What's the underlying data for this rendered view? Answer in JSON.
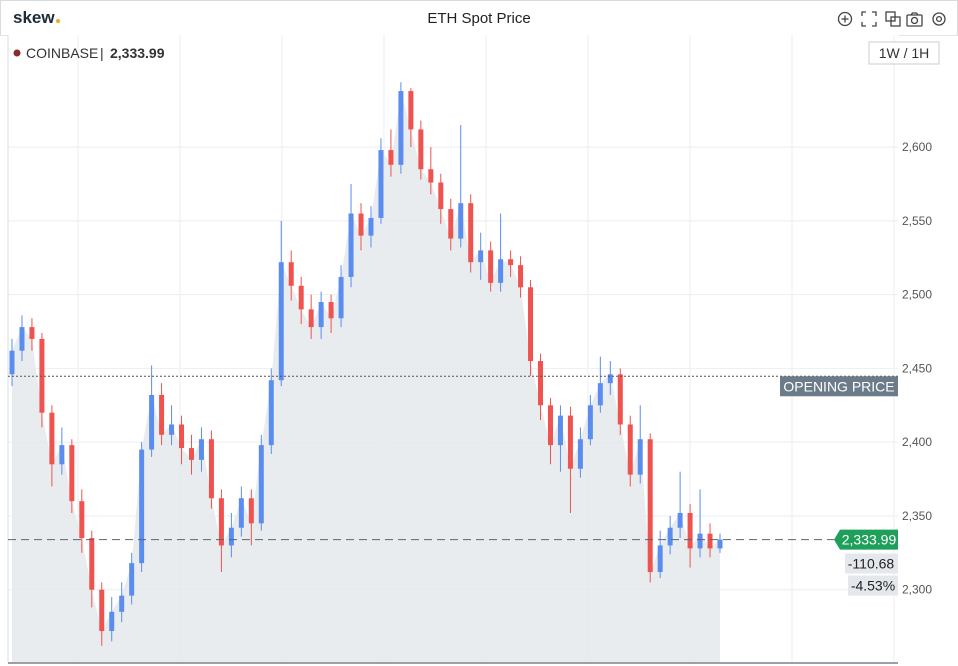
{
  "header": {
    "logo": "skew",
    "title": "ETH Spot Price"
  },
  "chart_data": {
    "type": "candlestick",
    "exchange": "COINBASE",
    "last_price": {
      "value": 2333.99,
      "label": "2,333.99"
    },
    "change": "-110.68",
    "change_pct": "-4.53%",
    "opening_price": 2444.67,
    "opening_price_label": "OPENING PRICE",
    "interval": "1W / 1H",
    "up_color": "#5b8def",
    "down_color": "#ef5350",
    "area_color": "#e4e7eb",
    "ylim": [
      2251,
      2676
    ],
    "yticks": [
      {
        "value": 2300,
        "label": "2,300"
      },
      {
        "value": 2350,
        "label": "2,350"
      },
      {
        "value": 2400,
        "label": "2,400"
      },
      {
        "value": 2450,
        "label": "2,450"
      },
      {
        "value": 2500,
        "label": "2,500"
      },
      {
        "value": 2550,
        "label": "2,550"
      },
      {
        "value": 2600,
        "label": "2,600"
      }
    ],
    "grid": true,
    "open": [
      2446,
      2462,
      2478,
      2470,
      2420,
      2385,
      2398,
      2360,
      2335,
      2300,
      2272,
      2285,
      2296,
      2318,
      2395,
      2432,
      2405,
      2412,
      2396,
      2388,
      2402,
      2362,
      2330,
      2342,
      2362,
      2345,
      2398,
      2442,
      2522,
      2506,
      2490,
      2478,
      2495,
      2484,
      2512,
      2555,
      2540,
      2552,
      2598,
      2588,
      2638,
      2612,
      2585,
      2576,
      2558,
      2538,
      2562,
      2522,
      2530,
      2508,
      2524,
      2520,
      2505,
      2455,
      2425,
      2398,
      2418,
      2382,
      2402,
      2425,
      2440,
      2446,
      2412,
      2378,
      2402,
      2312,
      2330,
      2342,
      2352,
      2328,
      2338,
      2328
    ],
    "high": [
      2470,
      2486,
      2484,
      2474,
      2425,
      2410,
      2402,
      2368,
      2340,
      2305,
      2295,
      2305,
      2325,
      2400,
      2452,
      2440,
      2425,
      2418,
      2405,
      2410,
      2408,
      2368,
      2352,
      2370,
      2368,
      2405,
      2450,
      2550,
      2530,
      2512,
      2500,
      2502,
      2500,
      2520,
      2575,
      2562,
      2560,
      2606,
      2612,
      2644,
      2640,
      2618,
      2600,
      2582,
      2565,
      2615,
      2568,
      2542,
      2536,
      2555,
      2530,
      2526,
      2510,
      2460,
      2430,
      2425,
      2424,
      2410,
      2432,
      2458,
      2455,
      2450,
      2418,
      2425,
      2406,
      2340,
      2350,
      2380,
      2358,
      2368,
      2345,
      2338
    ],
    "low": [
      2438,
      2455,
      2462,
      2410,
      2370,
      2378,
      2352,
      2325,
      2288,
      2262,
      2265,
      2278,
      2290,
      2312,
      2390,
      2398,
      2398,
      2385,
      2378,
      2380,
      2355,
      2312,
      2322,
      2336,
      2330,
      2340,
      2392,
      2438,
      2496,
      2480,
      2470,
      2470,
      2474,
      2478,
      2505,
      2530,
      2532,
      2548,
      2580,
      2582,
      2600,
      2578,
      2568,
      2548,
      2530,
      2532,
      2515,
      2510,
      2502,
      2502,
      2512,
      2498,
      2445,
      2415,
      2385,
      2380,
      2352,
      2376,
      2398,
      2420,
      2432,
      2405,
      2370,
      2372,
      2305,
      2308,
      2324,
      2335,
      2315,
      2322,
      2322,
      2325
    ],
    "close": [
      2462,
      2478,
      2470,
      2420,
      2385,
      2398,
      2360,
      2335,
      2300,
      2272,
      2285,
      2296,
      2318,
      2395,
      2432,
      2405,
      2412,
      2396,
      2388,
      2402,
      2362,
      2330,
      2342,
      2362,
      2345,
      2398,
      2442,
      2522,
      2506,
      2490,
      2478,
      2495,
      2484,
      2512,
      2555,
      2540,
      2552,
      2598,
      2588,
      2638,
      2612,
      2585,
      2576,
      2558,
      2538,
      2562,
      2522,
      2530,
      2508,
      2524,
      2520,
      2505,
      2455,
      2425,
      2398,
      2418,
      2382,
      2402,
      2425,
      2440,
      2446,
      2412,
      2378,
      2402,
      2312,
      2330,
      2342,
      2352,
      2328,
      2338,
      2328,
      2333.99
    ]
  }
}
